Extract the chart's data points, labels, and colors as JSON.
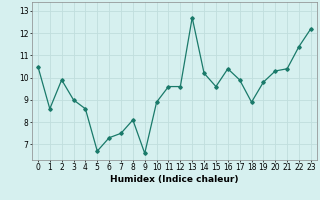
{
  "x": [
    0,
    1,
    2,
    3,
    4,
    5,
    6,
    7,
    8,
    9,
    10,
    11,
    12,
    13,
    14,
    15,
    16,
    17,
    18,
    19,
    20,
    21,
    22,
    23
  ],
  "y": [
    10.5,
    8.6,
    9.9,
    9.0,
    8.6,
    6.7,
    7.3,
    7.5,
    8.1,
    6.6,
    8.9,
    9.6,
    9.6,
    12.7,
    10.2,
    9.6,
    10.4,
    9.9,
    8.9,
    9.8,
    10.3,
    10.4,
    11.4,
    12.2
  ],
  "line_color": "#1a7a6a",
  "marker": "D",
  "marker_size": 1.8,
  "line_width": 0.9,
  "xlabel": "Humidex (Indice chaleur)",
  "ylim": [
    6.3,
    13.4
  ],
  "yticks": [
    7,
    8,
    9,
    10,
    11,
    12,
    13
  ],
  "xlim": [
    -0.5,
    23.5
  ],
  "xticks": [
    0,
    1,
    2,
    3,
    4,
    5,
    6,
    7,
    8,
    9,
    10,
    11,
    12,
    13,
    14,
    15,
    16,
    17,
    18,
    19,
    20,
    21,
    22,
    23
  ],
  "xtick_labels": [
    "0",
    "1",
    "2",
    "3",
    "4",
    "5",
    "6",
    "7",
    "8",
    "9",
    "10",
    "11",
    "12",
    "13",
    "14",
    "15",
    "16",
    "17",
    "18",
    "19",
    "20",
    "21",
    "22",
    "23"
  ],
  "bg_color": "#d6f0ef",
  "grid_color": "#c0dedd",
  "xlabel_fontsize": 6.5,
  "tick_fontsize": 5.5
}
